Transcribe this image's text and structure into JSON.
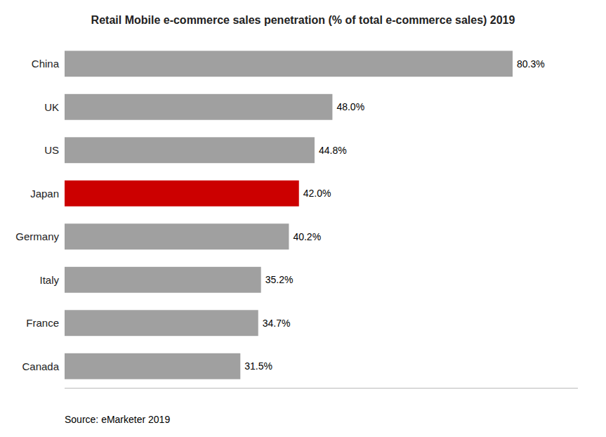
{
  "chart_data": {
    "type": "bar",
    "orientation": "horizontal",
    "title": "Retail Mobile e-commerce sales penetration (% of total e-commerce sales) 2019",
    "categories": [
      "China",
      "UK",
      "US",
      "Japan",
      "Germany",
      "Italy",
      "France",
      "Canada"
    ],
    "values": [
      80.3,
      48.0,
      44.8,
      42.0,
      40.2,
      35.2,
      34.7,
      31.5
    ],
    "value_labels": [
      "80.3%",
      "48.0%",
      "44.8%",
      "42.0%",
      "40.2%",
      "35.2%",
      "34.7%",
      "31.5%"
    ],
    "colors": [
      "#a0a0a0",
      "#a0a0a0",
      "#a0a0a0",
      "#cc0000",
      "#a0a0a0",
      "#a0a0a0",
      "#a0a0a0",
      "#a0a0a0"
    ],
    "xlim": [
      0,
      92
    ],
    "xticks": [],
    "data_labels": true,
    "tick_labels": "y",
    "grid": false,
    "annotations": [
      "Source: eMarketer 2019"
    ]
  }
}
